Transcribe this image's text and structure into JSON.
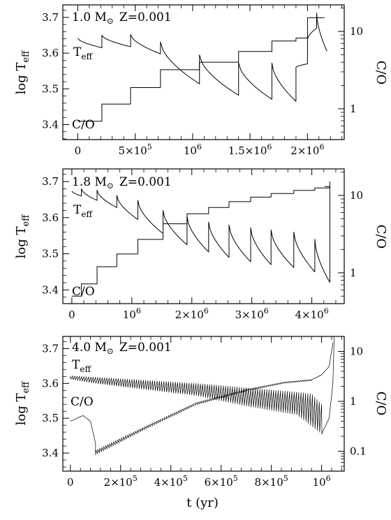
{
  "chart_data": [
    {
      "type": "line",
      "annotation_mass": "1.0 M",
      "annotation_z": "Z=0.001",
      "ylabel": "log T",
      "ylabel_sub": "eff",
      "ylabel_right": "C/O",
      "xlim": [
        -130000,
        2320000
      ],
      "ylim": [
        3.358,
        3.735
      ],
      "ylim_right_log": [
        0.4,
        22
      ],
      "xticks": [
        {
          "v": 0,
          "base": "0",
          "exp": ""
        },
        {
          "v": 500000,
          "base": "5×10",
          "exp": "5"
        },
        {
          "v": 1000000,
          "base": "10",
          "exp": "6"
        },
        {
          "v": 1500000,
          "base": "1.5×10",
          "exp": "6"
        },
        {
          "v": 2000000,
          "base": "2×10",
          "exp": "6"
        }
      ],
      "yticks": [
        "3.4",
        "3.5",
        "3.6",
        "3.7"
      ],
      "yticks_right": [
        "1",
        "10"
      ],
      "series": [
        {
          "label": "T",
          "label_sub": "eff",
          "axis": "left",
          "kind": "teff",
          "start": 3.642,
          "cycles": [
            {
              "t": 210000,
              "end": 3.615,
              "peak": 3.65
            },
            {
              "t": 460000,
              "end": 3.618,
              "peak": 3.652
            },
            {
              "t": 720000,
              "end": 3.598,
              "peak": 3.631
            },
            {
              "t": 1060000,
              "end": 3.514,
              "peak": 3.595
            },
            {
              "t": 1400000,
              "end": 3.482,
              "peak": 3.573
            },
            {
              "t": 1690000,
              "end": 3.471,
              "peak": 3.572
            },
            {
              "t": 1900000,
              "end": 3.465,
              "peak": 3.56
            },
            {
              "t": 2000000,
              "end": 3.57,
              "peak": 3.638
            },
            {
              "t": 2080000,
              "end": 3.67,
              "peak": 3.712
            }
          ],
          "final": 3.605,
          "t_end": 2170000
        },
        {
          "label": "C/O",
          "axis": "right",
          "kind": "co",
          "steps": [
            [
              0,
              0.69
            ],
            [
              210000,
              1.15
            ],
            [
              460000,
              1.88
            ],
            [
              720000,
              3.2
            ],
            [
              1060000,
              4.0
            ],
            [
              1400000,
              5.5
            ],
            [
              1690000,
              7.5
            ],
            [
              1900000,
              8.2
            ],
            [
              2000000,
              15.0
            ],
            [
              2080000,
              15.0
            ]
          ]
        }
      ]
    },
    {
      "type": "line",
      "annotation_mass": "1.8 M",
      "annotation_z": "Z=0.001",
      "ylabel": "log T",
      "ylabel_sub": "eff",
      "ylabel_right": "C/O",
      "xlim": [
        -150000,
        4540000
      ],
      "ylim": [
        3.362,
        3.735
      ],
      "ylim_right_log": [
        0.4,
        22
      ],
      "xticks": [
        {
          "v": 0,
          "base": "0",
          "exp": ""
        },
        {
          "v": 1000000,
          "base": "10",
          "exp": "6"
        },
        {
          "v": 2000000,
          "base": "2×10",
          "exp": "6"
        },
        {
          "v": 3000000,
          "base": "3×10",
          "exp": "6"
        },
        {
          "v": 4000000,
          "base": "4×10",
          "exp": "6"
        }
      ],
      "yticks": [
        "3.4",
        "3.5",
        "3.6",
        "3.7"
      ],
      "yticks_right": [
        "1",
        "10"
      ],
      "series": [
        {
          "label": "T",
          "label_sub": "eff",
          "axis": "left",
          "kind": "teff",
          "start": 3.674,
          "cycles": [
            {
              "t": 160000,
              "end": 3.66,
              "peak": 3.68
            },
            {
              "t": 420000,
              "end": 3.648,
              "peak": 3.676
            },
            {
              "t": 750000,
              "end": 3.628,
              "peak": 3.662
            },
            {
              "t": 1100000,
              "end": 3.595,
              "peak": 3.648
            },
            {
              "t": 1520000,
              "end": 3.556,
              "peak": 3.62
            },
            {
              "t": 1920000,
              "end": 3.525,
              "peak": 3.604
            },
            {
              "t": 2280000,
              "end": 3.505,
              "peak": 3.588
            },
            {
              "t": 2620000,
              "end": 3.49,
              "peak": 3.58
            },
            {
              "t": 2980000,
              "end": 3.478,
              "peak": 3.572
            },
            {
              "t": 3320000,
              "end": 3.47,
              "peak": 3.566
            },
            {
              "t": 3700000,
              "end": 3.462,
              "peak": 3.56
            },
            {
              "t": 4050000,
              "end": 3.45,
              "peak": 3.54
            }
          ],
          "final": 3.421,
          "t_end": 4300000,
          "spike_to": 3.7
        },
        {
          "label": "C/O",
          "axis": "right",
          "kind": "co",
          "steps": [
            [
              0,
              0.5
            ],
            [
              160000,
              0.72
            ],
            [
              420000,
              1.2
            ],
            [
              750000,
              1.75
            ],
            [
              1100000,
              2.7
            ],
            [
              1520000,
              4.3
            ],
            [
              1920000,
              5.8
            ],
            [
              2280000,
              7.0
            ],
            [
              2620000,
              8.3
            ],
            [
              2980000,
              9.5
            ],
            [
              3320000,
              10.6
            ],
            [
              3700000,
              11.6
            ],
            [
              4050000,
              12.5
            ],
            [
              4300000,
              13.0
            ]
          ]
        }
      ]
    },
    {
      "type": "line",
      "annotation_mass": "4.0 M",
      "annotation_z": "Z=0.001",
      "ylabel": "log T",
      "ylabel_sub": "eff",
      "ylabel_right": "C/O",
      "xlabel": "t (yr)",
      "xlim": [
        -30000,
        1090000
      ],
      "ylim": [
        3.348,
        3.735
      ],
      "ylim_right_log": [
        0.04,
        20
      ],
      "xticks": [
        {
          "v": 0,
          "base": "0",
          "exp": ""
        },
        {
          "v": 200000,
          "base": "2×10",
          "exp": "5"
        },
        {
          "v": 400000,
          "base": "4×10",
          "exp": "5"
        },
        {
          "v": 600000,
          "base": "6×10",
          "exp": "5"
        },
        {
          "v": 800000,
          "base": "8×10",
          "exp": "5"
        },
        {
          "v": 1000000,
          "base": "10",
          "exp": "6"
        }
      ],
      "yticks": [
        "3.4",
        "3.5",
        "3.6",
        "3.7"
      ],
      "yticks_right": [
        "0.1",
        "1",
        "10"
      ],
      "series": [
        {
          "label": "T",
          "label_sub": "eff",
          "axis": "left",
          "kind": "dense",
          "t_start": 0,
          "t_end": 1000000,
          "upper": [
            [
              0,
              3.622
            ],
            [
              500000,
              3.6
            ],
            [
              900000,
              3.575
            ],
            [
              960000,
              3.57
            ],
            [
              1000000,
              3.54
            ]
          ],
          "lower": [
            [
              0,
              3.612
            ],
            [
              100000,
              3.6
            ],
            [
              500000,
              3.565
            ],
            [
              700000,
              3.535
            ],
            [
              900000,
              3.51
            ],
            [
              1000000,
              3.455
            ]
          ],
          "n": 110,
          "tail": [
            [
              1000000,
              3.455
            ],
            [
              1030000,
              3.5
            ],
            [
              1045000,
              3.6
            ],
            [
              1050000,
              3.735
            ]
          ]
        },
        {
          "label": "C/O",
          "axis": "right",
          "kind": "dense-log",
          "rise": [
            [
              0,
              0.4
            ],
            [
              50000,
              0.52
            ],
            [
              80000,
              0.4
            ],
            [
              100000,
              0.145
            ]
          ],
          "lower": [
            [
              100000,
              0.085
            ],
            [
              300000,
              0.28
            ],
            [
              500000,
              0.85
            ],
            [
              700000,
              1.6
            ],
            [
              850000,
              2.3
            ],
            [
              960000,
              2.6
            ]
          ],
          "upper": [
            [
              100000,
              0.105
            ],
            [
              300000,
              0.32
            ],
            [
              500000,
              0.95
            ],
            [
              700000,
              1.75
            ],
            [
              850000,
              2.45
            ],
            [
              960000,
              2.75
            ]
          ],
          "n": 110,
          "tail": [
            [
              960000,
              2.7
            ],
            [
              1000000,
              3.4
            ],
            [
              1030000,
              5.0
            ],
            [
              1045000,
              15.0
            ]
          ]
        }
      ]
    }
  ]
}
